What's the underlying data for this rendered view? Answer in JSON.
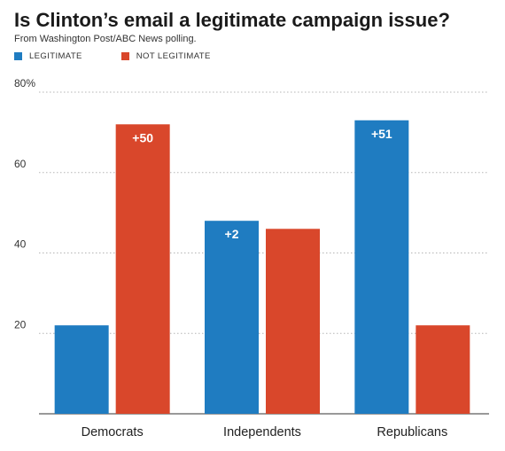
{
  "chart_data": {
    "type": "bar",
    "title": "Is Clinton’s email a legitimate campaign issue?",
    "subtitle": "From Washington Post/ABC News polling.",
    "categories": [
      "Democrats",
      "Independents",
      "Republicans"
    ],
    "series": [
      {
        "name": "LEGITIMATE",
        "color": "#1f7cc1",
        "values": [
          22,
          48,
          73
        ]
      },
      {
        "name": "NOT LEGITIMATE",
        "color": "#d9472b",
        "values": [
          72,
          46,
          22
        ]
      }
    ],
    "gap_labels": [
      {
        "category": "Democrats",
        "series": "NOT LEGITIMATE",
        "text": "+50"
      },
      {
        "category": "Independents",
        "series": "LEGITIMATE",
        "text": "+2"
      },
      {
        "category": "Republicans",
        "series": "LEGITIMATE",
        "text": "+51"
      }
    ],
    "ylim": [
      0,
      80
    ],
    "yticks": [
      {
        "value": 20,
        "label": "20"
      },
      {
        "value": 40,
        "label": "40"
      },
      {
        "value": 60,
        "label": "60"
      },
      {
        "value": 80,
        "label": "80%"
      }
    ],
    "grid": true,
    "legend": "top-left"
  }
}
